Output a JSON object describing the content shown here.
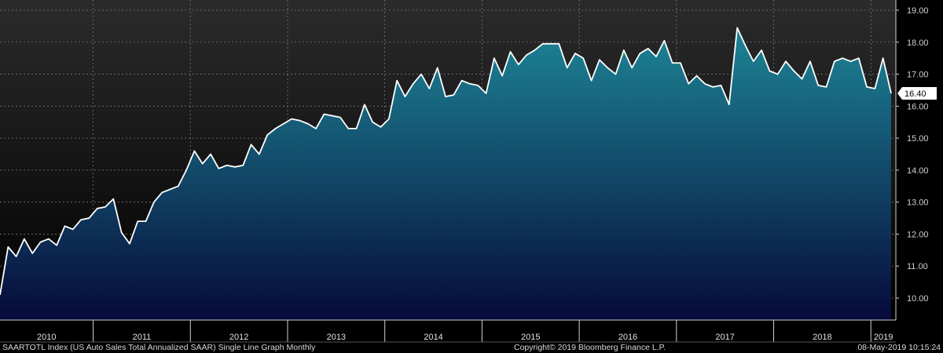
{
  "chart_data": {
    "type": "area",
    "title": "",
    "xlabel": "",
    "ylabel": "",
    "ylim": [
      9.25,
      19.25
    ],
    "y_ticks": [
      "10.00",
      "11.00",
      "12.00",
      "13.00",
      "14.00",
      "15.00",
      "16.00",
      "17.00",
      "18.00",
      "19.00"
    ],
    "x_ticks": [
      "2010",
      "2011",
      "2012",
      "2013",
      "2014",
      "2015",
      "2016",
      "2017",
      "2018",
      "2019"
    ],
    "grid": true,
    "x_start": "2010-01",
    "series": [
      {
        "values": [
          10.1,
          11.6,
          11.3,
          11.85,
          11.4,
          11.75,
          11.85,
          11.65,
          12.25,
          12.15,
          12.45,
          12.5,
          12.8,
          12.85,
          13.1,
          12.05,
          11.7,
          12.4,
          12.4,
          13.0,
          13.3,
          13.4,
          13.5,
          14.0,
          14.6,
          14.2,
          14.5,
          14.05,
          14.15,
          14.1,
          14.15,
          14.8,
          14.5,
          15.1,
          15.3,
          15.45,
          15.6,
          15.55,
          15.45,
          15.3,
          15.75,
          15.7,
          15.65,
          15.3,
          15.3,
          16.05,
          15.5,
          15.35,
          15.6,
          16.8,
          16.3,
          16.7,
          17.0,
          16.55,
          17.2,
          16.3,
          16.35,
          16.8,
          16.7,
          16.65,
          16.4,
          17.5,
          16.95,
          17.7,
          17.3,
          17.6,
          17.75,
          17.95,
          17.95,
          17.95,
          17.2,
          17.65,
          17.5,
          16.8,
          17.45,
          17.2,
          17.0,
          17.75,
          17.2,
          17.65,
          17.8,
          17.55,
          18.05,
          17.35,
          17.35,
          16.7,
          16.95,
          16.7,
          16.6,
          16.65,
          16.05,
          18.45,
          17.9,
          17.4,
          17.75,
          17.1,
          17.0,
          17.4,
          17.1,
          16.85,
          17.4,
          16.65,
          16.6,
          17.4,
          17.5,
          17.4,
          17.5,
          16.6,
          16.55,
          17.5,
          16.4
        ]
      }
    ],
    "last_value_label": "16.40"
  },
  "footer": {
    "left": "SAARTOTL Index (US Auto Sales Total Annualized SAAR) Single Line Graph  Monthly",
    "center": "Copyright© 2019 Bloomberg Finance L.P.",
    "right": "08-May-2019 10:15:24"
  },
  "colors": {
    "background_top": "#2b2b2b",
    "background_bottom": "#000000",
    "area_top": "#1e8a9a",
    "area_bottom": "#060a3a",
    "line": "#ffffff",
    "grid": "#7a7a7a",
    "label_box": "#ffffff"
  }
}
